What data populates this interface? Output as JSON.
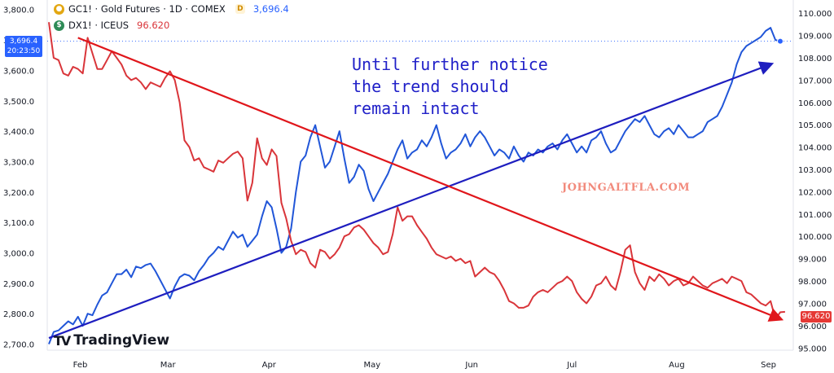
{
  "legend": {
    "gc": {
      "ticker": "GC1! · Gold Futures · 1D · COMEX",
      "value": "3,696.4",
      "badge": "D",
      "icon": "gold-coin-icon"
    },
    "dx": {
      "ticker": "DX1! · ICEUS",
      "value": "96.620",
      "icon": "dollar-coin-icon"
    }
  },
  "price_label": {
    "value": "3,696.4",
    "time": "20:23:50"
  },
  "dx_label": "96.620",
  "annotation": [
    "Until further notice",
    "the trend should",
    "remain intact"
  ],
  "watermark": "JOHNGALTFLA.COM",
  "logo": {
    "mark": "TV",
    "text": "TradingView"
  },
  "colors": {
    "gold": "#2156d8",
    "dxy": "#d9353a",
    "trend_gold": "#1e1ebf",
    "trend_dxy": "#e0161b",
    "price_box": "#2962ff"
  },
  "chart_data": {
    "type": "line",
    "x_labels": [
      "Feb",
      "Mar",
      "Apr",
      "May",
      "Jun",
      "Jul",
      "Aug",
      "Sep"
    ],
    "left_axis": {
      "ticks": [
        "3,800.0",
        "3,700.0",
        "3,600.0",
        "3,500.0",
        "3,400.0",
        "3,300.0",
        "3,200.0",
        "3,100.0",
        "3,000.0",
        "2,900.0",
        "2,800.0",
        "2,700.0"
      ],
      "range": [
        2680,
        3810
      ]
    },
    "right_axis": {
      "ticks": [
        "110.000",
        "109.000",
        "108.000",
        "107.000",
        "106.000",
        "105.000",
        "104.000",
        "103.000",
        "102.000",
        "101.000",
        "100.000",
        "99.000",
        "98.000",
        "97.000",
        "96.000",
        "95.000"
      ],
      "range": [
        94.9,
        110.3
      ]
    },
    "series": [
      {
        "name": "GC1! · Gold Futures · 1D · COMEX",
        "axis": "left",
        "color": "#2156d8",
        "values": [
          2700,
          2740,
          2745,
          2760,
          2775,
          2765,
          2790,
          2760,
          2800,
          2795,
          2830,
          2860,
          2870,
          2900,
          2930,
          2930,
          2945,
          2920,
          2955,
          2950,
          2960,
          2965,
          2940,
          2910,
          2880,
          2850,
          2890,
          2920,
          2930,
          2925,
          2910,
          2940,
          2960,
          2985,
          3000,
          3020,
          3010,
          3040,
          3070,
          3050,
          3060,
          3020,
          3040,
          3060,
          3120,
          3170,
          3150,
          3080,
          3000,
          3020,
          3080,
          3200,
          3300,
          3320,
          3380,
          3420,
          3350,
          3280,
          3300,
          3350,
          3400,
          3310,
          3230,
          3250,
          3290,
          3270,
          3210,
          3170,
          3200,
          3230,
          3260,
          3300,
          3340,
          3370,
          3310,
          3330,
          3340,
          3370,
          3350,
          3380,
          3420,
          3360,
          3310,
          3330,
          3340,
          3360,
          3390,
          3350,
          3380,
          3400,
          3380,
          3350,
          3320,
          3340,
          3330,
          3310,
          3350,
          3320,
          3300,
          3330,
          3320,
          3340,
          3330,
          3350,
          3360,
          3340,
          3370,
          3390,
          3360,
          3330,
          3350,
          3330,
          3370,
          3380,
          3400,
          3360,
          3330,
          3340,
          3370,
          3400,
          3420,
          3440,
          3430,
          3450,
          3420,
          3390,
          3380,
          3400,
          3410,
          3390,
          3420,
          3400,
          3380,
          3380,
          3390,
          3400,
          3430,
          3440,
          3450,
          3480,
          3520,
          3560,
          3620,
          3660,
          3680,
          3690,
          3700,
          3710,
          3730,
          3740,
          3700,
          3696
        ]
      },
      {
        "name": "DX1! · ICEUS",
        "axis": "right",
        "color": "#d9353a",
        "values": [
          109.6,
          108.0,
          107.9,
          107.3,
          107.2,
          107.6,
          107.5,
          107.3,
          108.9,
          108.2,
          107.5,
          107.5,
          107.9,
          108.3,
          108.0,
          107.7,
          107.2,
          107.0,
          107.1,
          106.9,
          106.6,
          106.9,
          106.8,
          106.7,
          107.1,
          107.4,
          107.0,
          106.0,
          104.3,
          104.0,
          103.4,
          103.5,
          103.1,
          103.0,
          102.9,
          103.4,
          103.3,
          103.5,
          103.7,
          103.8,
          103.5,
          101.6,
          102.4,
          104.4,
          103.5,
          103.2,
          103.9,
          103.6,
          101.5,
          100.8,
          99.8,
          99.2,
          99.4,
          99.3,
          98.8,
          98.6,
          99.4,
          99.3,
          99.0,
          99.2,
          99.5,
          100.0,
          100.1,
          100.4,
          100.5,
          100.3,
          100.0,
          99.7,
          99.5,
          99.2,
          99.3,
          100.1,
          101.3,
          100.7,
          100.9,
          100.9,
          100.5,
          100.2,
          99.9,
          99.5,
          99.2,
          99.1,
          99.0,
          99.1,
          98.9,
          99.0,
          98.8,
          98.9,
          98.2,
          98.4,
          98.6,
          98.4,
          98.3,
          98.0,
          97.6,
          97.1,
          97.0,
          96.8,
          96.8,
          96.9,
          97.3,
          97.5,
          97.6,
          97.5,
          97.7,
          97.9,
          98.0,
          98.2,
          98.0,
          97.5,
          97.2,
          97.0,
          97.3,
          97.8,
          97.9,
          98.2,
          97.8,
          97.6,
          98.4,
          99.4,
          99.6,
          98.4,
          97.9,
          97.6,
          98.2,
          98.0,
          98.3,
          98.1,
          97.8,
          98.0,
          98.1,
          97.8,
          97.9,
          98.2,
          98.0,
          97.8,
          97.7,
          97.9,
          98.0,
          98.1,
          97.9,
          98.2,
          98.1,
          98.0,
          97.5,
          97.4,
          97.2,
          97.0,
          96.9,
          97.1,
          96.3,
          96.6,
          96.62
        ]
      }
    ],
    "trendlines": [
      {
        "name": "Gold uptrend",
        "axis": "left",
        "from": [
          0,
          2720
        ],
        "to": [
          149,
          3620
        ],
        "color": "#1e1ebf"
      },
      {
        "name": "DXY downtrend",
        "axis": "right",
        "from": [
          6,
          108.9
        ],
        "to": [
          151,
          96.3
        ],
        "color": "#e0161b"
      }
    ]
  }
}
